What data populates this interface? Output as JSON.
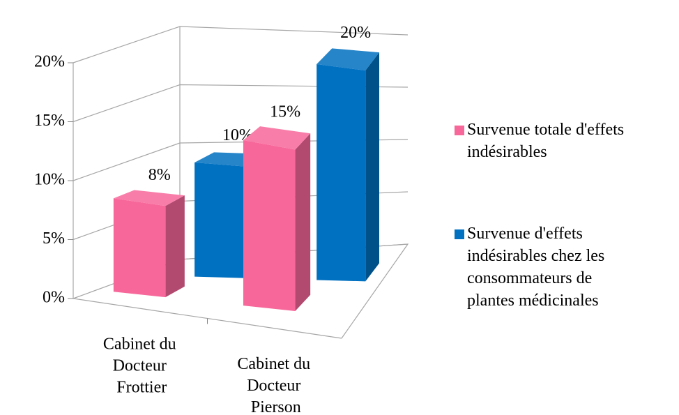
{
  "chart_data": {
    "type": "bar3d",
    "categories": [
      "Cabinet du Docteur Frottier",
      "Cabinet du Docteur Pierson"
    ],
    "series": [
      {
        "name": "Survenue totale d'effets indésirables",
        "color": "#f7679a",
        "values": [
          8,
          15
        ],
        "value_labels": [
          "8%",
          "15%"
        ]
      },
      {
        "name": "Survenue d'effets indésirables chez les consommateurs de plantes médicinales",
        "color": "#0070c0",
        "values": [
          10,
          20
        ],
        "value_labels": [
          "10%",
          "20%"
        ]
      }
    ],
    "ylim": [
      0,
      20
    ],
    "yticks": [
      {
        "value": 0,
        "label": "0%"
      },
      {
        "value": 5,
        "label": "5%"
      },
      {
        "value": 10,
        "label": "10%"
      },
      {
        "value": 15,
        "label": "15%"
      },
      {
        "value": 20,
        "label": "20%"
      }
    ],
    "grid": true,
    "legend": "right"
  }
}
